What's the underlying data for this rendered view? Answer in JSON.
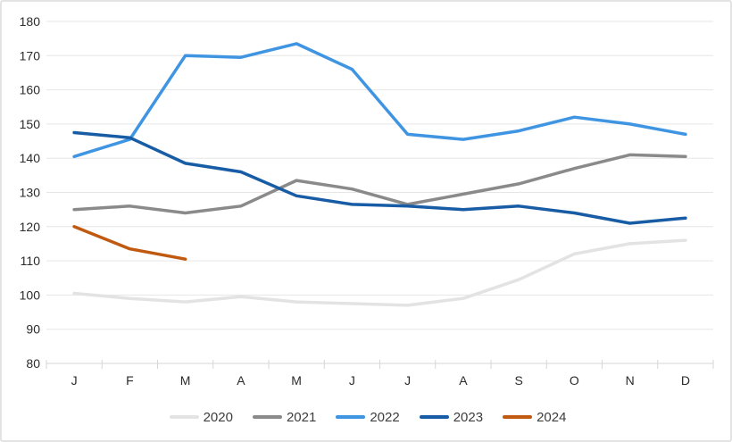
{
  "chart_data": {
    "type": "line",
    "title": "",
    "xlabel": "",
    "ylabel": "",
    "categories": [
      "J",
      "F",
      "M",
      "A",
      "M",
      "J",
      "J",
      "A",
      "S",
      "O",
      "N",
      "D"
    ],
    "yticks": [
      80,
      90,
      100,
      110,
      120,
      130,
      140,
      150,
      160,
      170,
      180
    ],
    "ylim": [
      80,
      180
    ],
    "grid": true,
    "legend_position": "bottom",
    "series": [
      {
        "name": "2020",
        "color": "#e3e3e3",
        "values": [
          100.5,
          99,
          98,
          99.5,
          98,
          97.5,
          97,
          99,
          104.5,
          112,
          115,
          116
        ]
      },
      {
        "name": "2021",
        "color": "#8a8a8a",
        "values": [
          125,
          126,
          124,
          126,
          133.5,
          131,
          126.5,
          129.5,
          132.5,
          137,
          141,
          140.5
        ]
      },
      {
        "name": "2022",
        "color": "#4095e3",
        "values": [
          140.5,
          145.5,
          170,
          169.5,
          173.5,
          166,
          147,
          145.5,
          148,
          152,
          150,
          147
        ]
      },
      {
        "name": "2023",
        "color": "#175ca4",
        "values": [
          147.5,
          146,
          138.5,
          136,
          129,
          126.5,
          126,
          125,
          126,
          124,
          121,
          122.5
        ]
      },
      {
        "name": "2024",
        "color": "#c05a11",
        "values": [
          120,
          113.5,
          110.5
        ]
      }
    ]
  }
}
